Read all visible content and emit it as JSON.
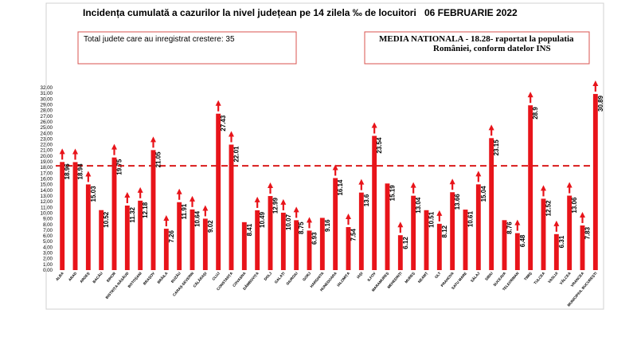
{
  "header": {
    "title": "Incidența cumulată a cazurilor la nivel județean pe 14 zilela ‰ de locuitori",
    "date": "06 FEBRUARIE 2022"
  },
  "info_box": {
    "text": "Total judete care au inregistrat crestere: 35"
  },
  "media_box": {
    "line1": "MEDIA NATIONALA - 18.28-  raportat la populatia",
    "line2": "României, conform datelor INS"
  },
  "colors": {
    "bar": "#e8141a",
    "arrow": "#e8141a",
    "mean_line": "#d91a1a",
    "box_border": "#d9534f"
  },
  "chart_data": {
    "type": "bar",
    "title": "Incidența cumulată a cazurilor la nivel județean pe 14 zilela ‰ de locuitori",
    "categories": [
      "ALBA",
      "ARAD",
      "ARGEȘ",
      "BACĂU",
      "BIHOR",
      "BISTRIȚA-NĂSĂUD",
      "BOTOȘANI",
      "BRAȘOV",
      "BRĂILA",
      "BUZĂU",
      "CARAȘ-SEVERIN",
      "CĂLĂRAȘI",
      "CLUJ",
      "CONSTANȚA",
      "COVASNA",
      "DÂMBOVIȚA",
      "DOLJ",
      "GALAȚI",
      "GIURGIU",
      "GORJ",
      "HARGHITA",
      "HUNEDOARA",
      "IALOMIȚA",
      "IAȘI",
      "ILFOV",
      "MARAMUREȘ",
      "MEHEDINȚI",
      "MUREȘ",
      "NEAMȚ",
      "OLT",
      "PRAHOVA",
      "SATU MARE",
      "SĂLAJ",
      "SIBIU",
      "SUCEAVA",
      "TELEORMAN",
      "TIMIȘ",
      "TULCEA",
      "VASLUI",
      "VÂLCEA",
      "VRANCEA",
      "MUNICIPIUL BUCUREȘTI"
    ],
    "values": [
      18.96,
      18.94,
      15.03,
      10.52,
      19.75,
      11.32,
      12.18,
      21.05,
      7.26,
      11.91,
      10.64,
      9.02,
      27.43,
      22.01,
      8.41,
      10.49,
      12.99,
      10.07,
      8.75,
      6.93,
      9.16,
      16.14,
      7.54,
      13.6,
      23.54,
      15.19,
      6.12,
      13.04,
      10.51,
      8.12,
      13.66,
      10.61,
      15.04,
      23.15,
      8.76,
      6.48,
      28.9,
      12.52,
      6.31,
      13.06,
      7.83,
      30.89
    ],
    "value_labels": [
      "18.96",
      "18.94",
      "15.03",
      "10.52",
      "19.75",
      "11.32",
      "12.18",
      "21.05",
      "7.26",
      "11.91",
      "10.64",
      "9.02",
      "27.43",
      "22.01",
      "8.41",
      "10.49",
      "12.99",
      "10.07",
      "8.75",
      "6.93",
      "9.16",
      "16.14",
      "7.54",
      "13.6",
      "23.54",
      "15.19",
      "6.12",
      "13.04",
      "10.51",
      "8.12",
      "13.66",
      "10.61",
      "15.04",
      "23.15",
      "8.76",
      "6.48",
      "28.9",
      "12.52",
      "6.31",
      "13.06",
      "7.83",
      "30.89"
    ],
    "increase": [
      true,
      true,
      true,
      false,
      true,
      true,
      true,
      true,
      true,
      true,
      true,
      true,
      true,
      true,
      false,
      true,
      true,
      true,
      true,
      true,
      false,
      true,
      true,
      true,
      true,
      false,
      true,
      true,
      false,
      true,
      true,
      false,
      true,
      true,
      false,
      true,
      true,
      true,
      true,
      true,
      true,
      true
    ],
    "mean": 18.28,
    "ylim": [
      0,
      32
    ],
    "yticks": [
      "0.00",
      "1.00",
      "2.00",
      "3.00",
      "4.00",
      "5.00",
      "6.00",
      "7.00",
      "8.00",
      "9.00",
      "10.00",
      "11.00",
      "12.00",
      "13.00",
      "14.00",
      "15.00",
      "16.00",
      "17.00",
      "18.00",
      "19.00",
      "20.00",
      "21.00",
      "22.00",
      "23.00",
      "24.00",
      "25.00",
      "26.00",
      "27.00",
      "28.00",
      "29.00",
      "30.00",
      "31.00",
      "32.00"
    ],
    "xlabel": "",
    "ylabel": ""
  }
}
